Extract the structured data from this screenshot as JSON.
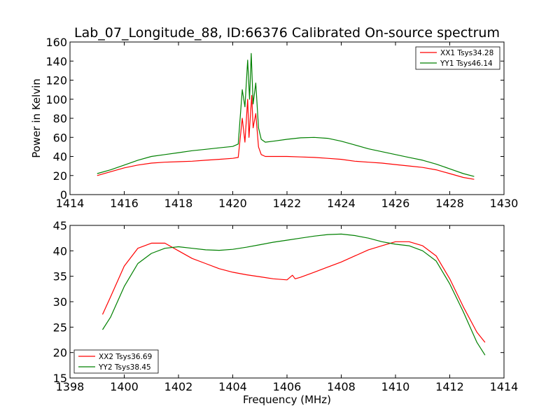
{
  "chart_data": [
    {
      "type": "line",
      "title": "Lab_07_Longitude_88, ID:66376 Calibrated On-source spectrum",
      "xlabel": "",
      "ylabel": "Power in Kelvin",
      "xlim": [
        1414,
        1430
      ],
      "ylim": [
        0,
        160
      ],
      "xticks": [
        1414,
        1416,
        1418,
        1420,
        1422,
        1424,
        1426,
        1428,
        1430
      ],
      "yticks": [
        0,
        20,
        40,
        60,
        80,
        100,
        120,
        140,
        160
      ],
      "grid": false,
      "legend_position": "top-right",
      "series": [
        {
          "name": "XX1 Tsys34.28",
          "color": "#ff0000",
          "points": [
            [
              1415.0,
              20
            ],
            [
              1415.5,
              24
            ],
            [
              1416.0,
              28
            ],
            [
              1416.5,
              31
            ],
            [
              1417.0,
              33
            ],
            [
              1417.5,
              34
            ],
            [
              1418.0,
              34.5
            ],
            [
              1418.5,
              35
            ],
            [
              1419.0,
              36
            ],
            [
              1419.5,
              37
            ],
            [
              1420.0,
              38
            ],
            [
              1420.2,
              39
            ],
            [
              1420.35,
              80
            ],
            [
              1420.45,
              55
            ],
            [
              1420.55,
              100
            ],
            [
              1420.6,
              60
            ],
            [
              1420.7,
              104
            ],
            [
              1420.75,
              70
            ],
            [
              1420.85,
              85
            ],
            [
              1420.95,
              50
            ],
            [
              1421.05,
              42
            ],
            [
              1421.2,
              40
            ],
            [
              1421.5,
              40
            ],
            [
              1422.0,
              40
            ],
            [
              1422.5,
              39.5
            ],
            [
              1423.0,
              39
            ],
            [
              1423.5,
              38
            ],
            [
              1424.0,
              37
            ],
            [
              1424.5,
              35
            ],
            [
              1425.0,
              34
            ],
            [
              1425.5,
              33
            ],
            [
              1426.0,
              31.5
            ],
            [
              1426.5,
              30
            ],
            [
              1427.0,
              28.5
            ],
            [
              1427.5,
              26
            ],
            [
              1428.0,
              22
            ],
            [
              1428.5,
              18
            ],
            [
              1428.9,
              16
            ]
          ]
        },
        {
          "name": "YY1 Tsys46.14",
          "color": "#008000",
          "points": [
            [
              1415.0,
              22
            ],
            [
              1415.5,
              26
            ],
            [
              1416.0,
              31
            ],
            [
              1416.5,
              36
            ],
            [
              1417.0,
              40
            ],
            [
              1417.5,
              42
            ],
            [
              1418.0,
              44
            ],
            [
              1418.5,
              46
            ],
            [
              1419.0,
              47.5
            ],
            [
              1419.5,
              49
            ],
            [
              1420.0,
              50.5
            ],
            [
              1420.2,
              53
            ],
            [
              1420.35,
              110
            ],
            [
              1420.45,
              92
            ],
            [
              1420.55,
              141
            ],
            [
              1420.62,
              100
            ],
            [
              1420.68,
              148
            ],
            [
              1420.75,
              95
            ],
            [
              1420.85,
              117
            ],
            [
              1420.95,
              70
            ],
            [
              1421.05,
              58
            ],
            [
              1421.2,
              55
            ],
            [
              1421.5,
              56
            ],
            [
              1422.0,
              58
            ],
            [
              1422.5,
              59.5
            ],
            [
              1423.0,
              60
            ],
            [
              1423.5,
              59
            ],
            [
              1424.0,
              56
            ],
            [
              1424.5,
              52
            ],
            [
              1425.0,
              48
            ],
            [
              1425.5,
              45
            ],
            [
              1426.0,
              42
            ],
            [
              1426.5,
              39
            ],
            [
              1427.0,
              36
            ],
            [
              1427.5,
              32
            ],
            [
              1428.0,
              27
            ],
            [
              1428.5,
              22
            ],
            [
              1428.9,
              19
            ]
          ]
        }
      ]
    },
    {
      "type": "line",
      "title": "",
      "xlabel": "Frequency (MHz)",
      "ylabel": "",
      "xlim": [
        1398,
        1414
      ],
      "ylim": [
        15,
        45
      ],
      "xticks": [
        1398,
        1400,
        1402,
        1404,
        1406,
        1408,
        1410,
        1412,
        1414
      ],
      "yticks": [
        15,
        20,
        25,
        30,
        35,
        40,
        45
      ],
      "grid": false,
      "legend_position": "bottom-left",
      "series": [
        {
          "name": "XX2 Tsys36.69",
          "color": "#ff0000",
          "points": [
            [
              1399.2,
              27.5
            ],
            [
              1399.5,
              31
            ],
            [
              1400.0,
              37
            ],
            [
              1400.5,
              40.5
            ],
            [
              1401.0,
              41.5
            ],
            [
              1401.5,
              41.5
            ],
            [
              1402.0,
              40
            ],
            [
              1402.5,
              38.5
            ],
            [
              1403.0,
              37.5
            ],
            [
              1403.5,
              36.5
            ],
            [
              1404.0,
              35.8
            ],
            [
              1404.5,
              35.3
            ],
            [
              1405.0,
              34.9
            ],
            [
              1405.5,
              34.5
            ],
            [
              1406.0,
              34.3
            ],
            [
              1406.2,
              35.2
            ],
            [
              1406.3,
              34.5
            ],
            [
              1406.5,
              34.8
            ],
            [
              1407.0,
              35.8
            ],
            [
              1407.5,
              36.8
            ],
            [
              1408.0,
              37.8
            ],
            [
              1408.5,
              39
            ],
            [
              1409.0,
              40.2
            ],
            [
              1409.5,
              41
            ],
            [
              1410.0,
              41.8
            ],
            [
              1410.5,
              41.8
            ],
            [
              1411.0,
              41
            ],
            [
              1411.5,
              39
            ],
            [
              1412.0,
              34.5
            ],
            [
              1412.5,
              29
            ],
            [
              1413.0,
              24
            ],
            [
              1413.3,
              22
            ]
          ]
        },
        {
          "name": "YY2 Tsys38.45",
          "color": "#008000",
          "points": [
            [
              1399.2,
              24.5
            ],
            [
              1399.5,
              27
            ],
            [
              1400.0,
              33
            ],
            [
              1400.5,
              37.5
            ],
            [
              1401.0,
              39.5
            ],
            [
              1401.5,
              40.5
            ],
            [
              1402.0,
              40.8
            ],
            [
              1402.5,
              40.5
            ],
            [
              1403.0,
              40.2
            ],
            [
              1403.5,
              40.1
            ],
            [
              1404.0,
              40.3
            ],
            [
              1404.5,
              40.7
            ],
            [
              1405.0,
              41.2
            ],
            [
              1405.5,
              41.7
            ],
            [
              1406.0,
              42.1
            ],
            [
              1406.5,
              42.5
            ],
            [
              1407.0,
              42.9
            ],
            [
              1407.5,
              43.2
            ],
            [
              1408.0,
              43.3
            ],
            [
              1408.5,
              43
            ],
            [
              1409.0,
              42.5
            ],
            [
              1409.5,
              41.8
            ],
            [
              1410.0,
              41.3
            ],
            [
              1410.5,
              41
            ],
            [
              1411.0,
              40
            ],
            [
              1411.5,
              38
            ],
            [
              1412.0,
              33.5
            ],
            [
              1412.5,
              28
            ],
            [
              1413.0,
              22
            ],
            [
              1413.3,
              19.5
            ]
          ]
        }
      ]
    }
  ]
}
